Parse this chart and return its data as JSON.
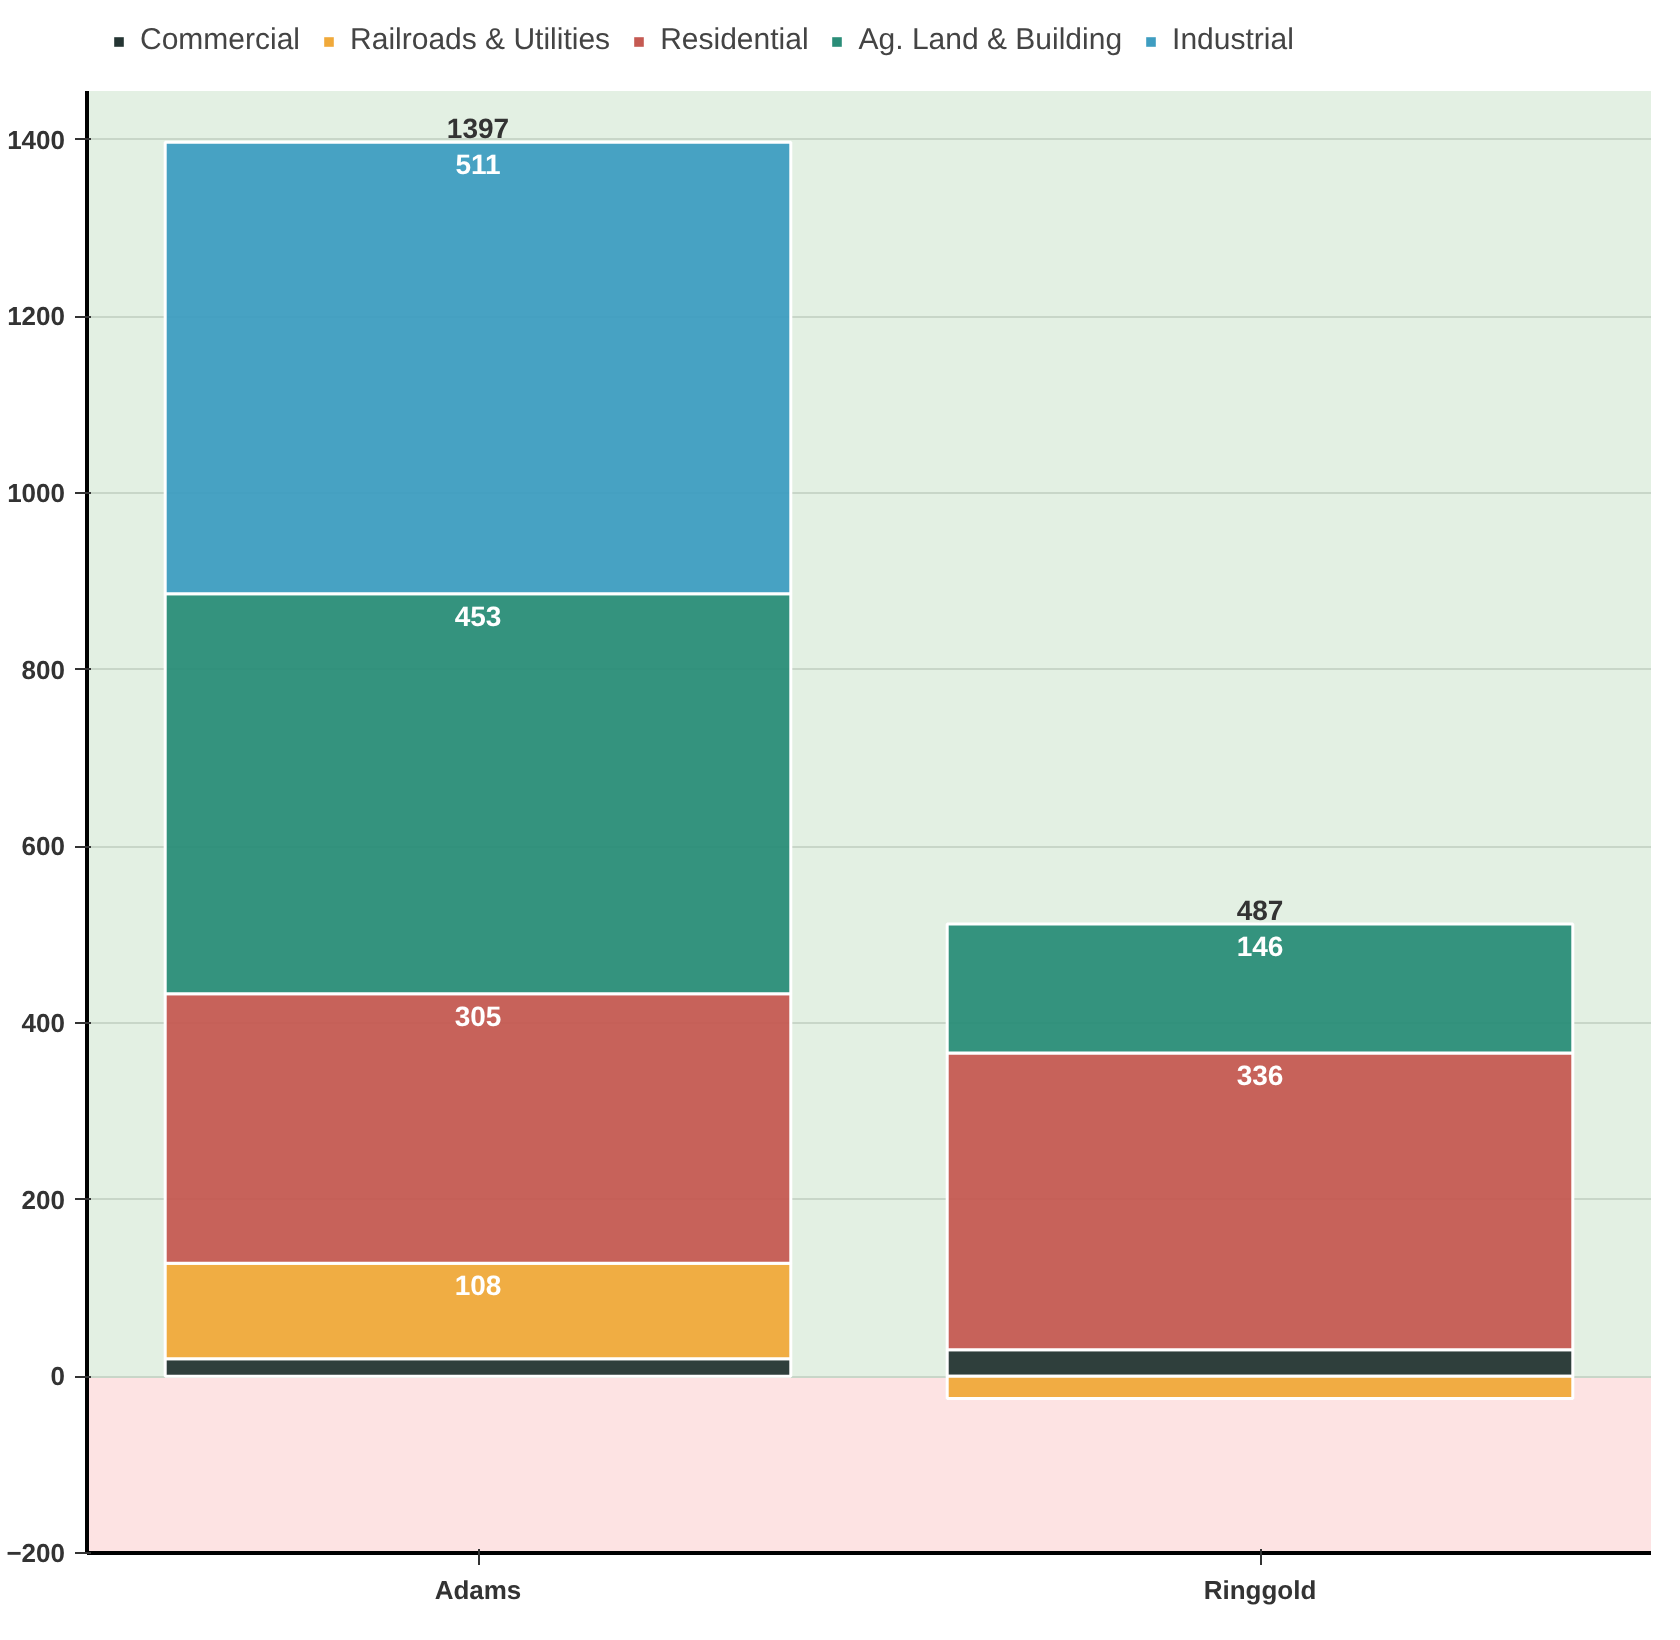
{
  "chart_data": {
    "type": "bar",
    "stacked": true,
    "categories": [
      "Adams",
      "Ringgold"
    ],
    "series": [
      {
        "name": "Commercial",
        "color": "#253533",
        "values": [
          20,
          30
        ],
        "value_labels": [
          null,
          null
        ]
      },
      {
        "name": "Railroads & Utilities",
        "color": "#f0a93a",
        "values": [
          108,
          -25
        ],
        "value_labels": [
          "108",
          null
        ]
      },
      {
        "name": "Residential",
        "color": "#c55a52",
        "values": [
          305,
          336
        ],
        "value_labels": [
          "305",
          "336"
        ]
      },
      {
        "name": "Ag. Land & Building",
        "color": "#2a8d78",
        "values": [
          453,
          146
        ],
        "value_labels": [
          "453",
          "146"
        ]
      },
      {
        "name": "Industrial",
        "color": "#3e9dc1",
        "values": [
          511,
          0
        ],
        "value_labels": [
          "511",
          null
        ]
      }
    ],
    "totals": [
      "1397",
      "487"
    ],
    "ylim": [
      -200,
      1455
    ],
    "yticks": [
      -200,
      0,
      200,
      400,
      600,
      800,
      1000,
      1200,
      1400
    ],
    "bands": [
      {
        "axis": "y",
        "from": 0,
        "to": 1455,
        "color": "#e3f0e3"
      },
      {
        "axis": "y",
        "from": -200,
        "to": 0,
        "color": "#fde3e3"
      }
    ],
    "grid": "y",
    "legend": "top"
  }
}
